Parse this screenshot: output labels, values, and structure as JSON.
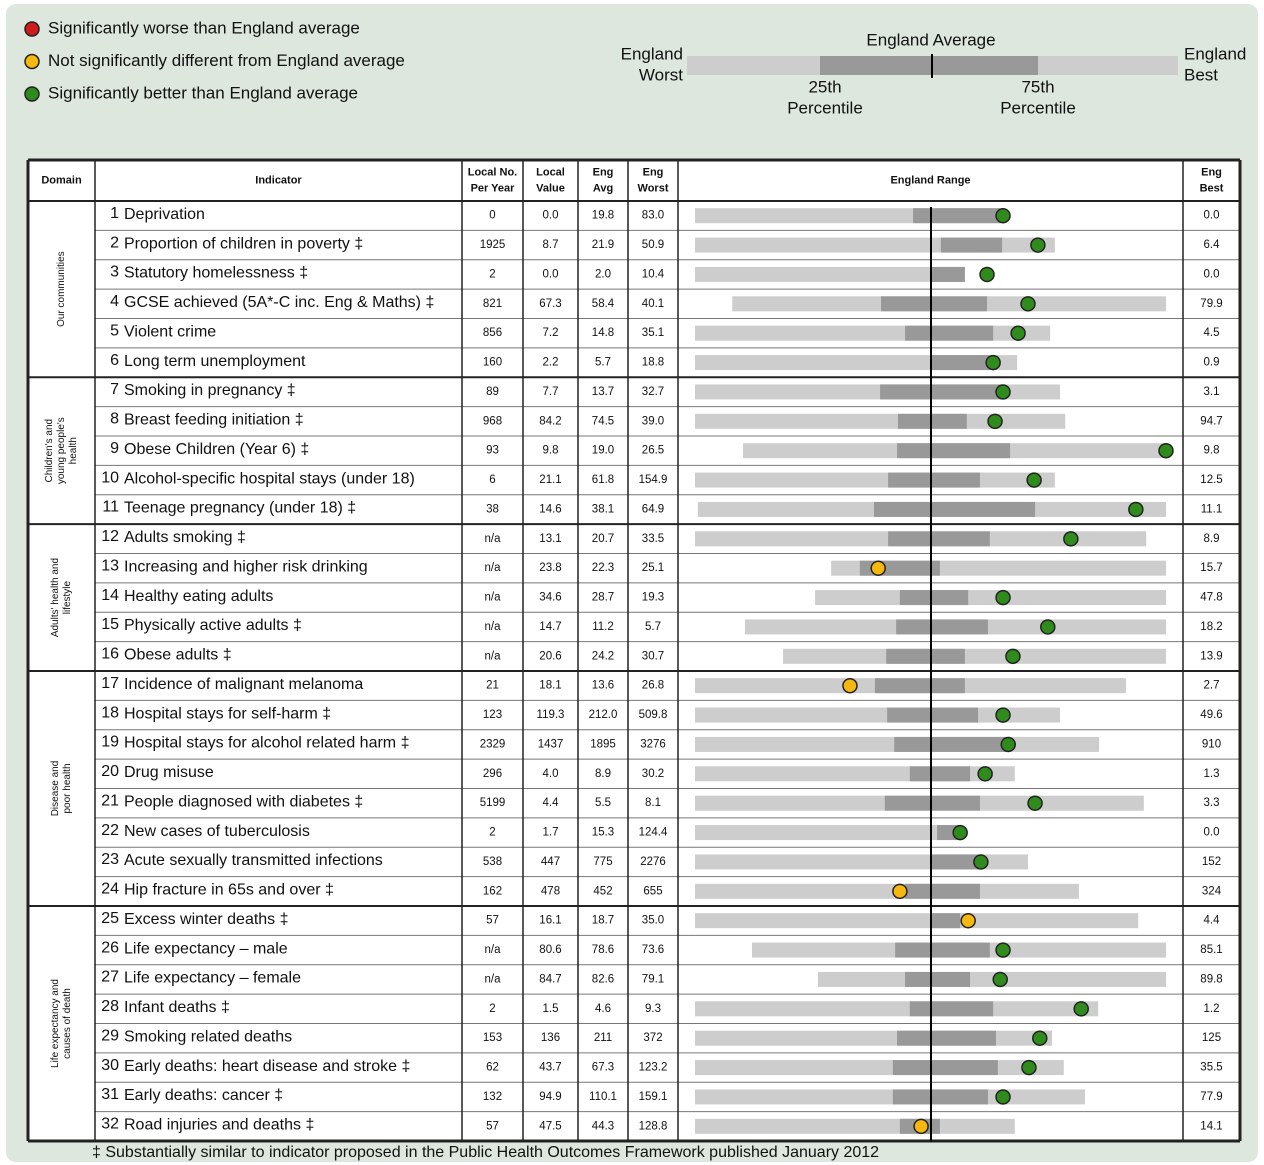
{
  "legend": [
    {
      "label": "Significantly worse than England average",
      "color": "#d21c1c"
    },
    {
      "label": "Not significantly different from England average",
      "color": "#f6b80f"
    },
    {
      "label": "Significantly better than England average",
      "color": "#2f8c1c"
    }
  ],
  "key": {
    "average": "England Average",
    "worst": [
      "England",
      "Worst"
    ],
    "best": [
      "England",
      "Best"
    ],
    "p25": [
      "25th",
      "Percentile"
    ],
    "p75": [
      "75th",
      "Percentile"
    ]
  },
  "table": {
    "headers": [
      [
        "Domain"
      ],
      [
        "Indicator"
      ],
      [
        "Local No.",
        "Per Year"
      ],
      [
        "Local",
        "Value"
      ],
      [
        "Eng",
        "Avg"
      ],
      [
        "Eng",
        "Worst"
      ],
      [
        "England Range"
      ],
      [
        "Eng",
        "Best"
      ]
    ],
    "domains": [
      {
        "name": [
          "Our communities"
        ],
        "rows": [
          [
            "1",
            "Deprivation",
            "0",
            "0.0",
            "19.8",
            "83.0",
            "0.0",
            [
              0,
              46.3,
              64.8,
              65.4,
              65.4
            ],
            "#2f8c1c"
          ],
          [
            "2",
            "Proportion of children in poverty ‡",
            "1925",
            "8.7",
            "21.9",
            "50.9",
            "6.4",
            [
              0,
              52.2,
              65.2,
              76.4,
              72.8
            ],
            "#2f8c1c"
          ],
          [
            "3",
            "Statutory homelessness ‡",
            "2",
            "0.0",
            "2.0",
            "10.4",
            "0.0",
            [
              0,
              49.9,
              57.3,
              57.3,
              62.0
            ],
            "#2f8c1c"
          ],
          [
            "4",
            "GCSE achieved (5A*-C inc. Eng & Maths) ‡",
            "821",
            "67.3",
            "58.4",
            "40.1",
            "79.9",
            [
              7.9,
              39.5,
              62.0,
              100,
              70.7
            ],
            "#2f8c1c"
          ],
          [
            "5",
            "Violent crime",
            "856",
            "7.2",
            "14.8",
            "35.1",
            "4.5",
            [
              0,
              44.6,
              63.3,
              75.4,
              68.6
            ],
            "#2f8c1c"
          ],
          [
            "6",
            "Long term unemployment",
            "160",
            "2.2",
            "5.7",
            "18.8",
            "0.9",
            [
              0,
              49.9,
              62.6,
              68.4,
              63.3
            ],
            "#2f8c1c"
          ]
        ]
      },
      {
        "name": [
          "Children's and",
          "young people's",
          "health"
        ],
        "rows": [
          [
            "7",
            "Smoking in pregnancy ‡",
            "89",
            "7.7",
            "13.7",
            "32.7",
            "3.1",
            [
              0,
              39.3,
              65.2,
              77.5,
              65.4
            ],
            "#2f8c1c"
          ],
          [
            "8",
            "Breast feeding initiation ‡",
            "968",
            "84.2",
            "74.5",
            "39.0",
            "94.7",
            [
              0,
              43.1,
              57.7,
              78.6,
              63.7
            ],
            "#2f8c1c"
          ],
          [
            "9",
            "Obese Children (Year 6) ‡",
            "93",
            "9.8",
            "19.0",
            "26.5",
            "9.8",
            [
              10.2,
              42.9,
              66.9,
              100,
              100
            ],
            "#2f8c1c"
          ],
          [
            "10",
            "Alcohol-specific hospital stays (under 18)",
            "6",
            "21.1",
            "61.8",
            "154.9",
            "12.5",
            [
              0,
              41.0,
              60.5,
              76.4,
              72.0
            ],
            "#2f8c1c"
          ],
          [
            "11",
            "Teenage pregnancy (under 18) ‡",
            "38",
            "14.6",
            "38.1",
            "64.9",
            "11.1",
            [
              0.6,
              38.0,
              72.2,
              100,
              93.6
            ],
            "#2f8c1c"
          ]
        ]
      },
      {
        "name": [
          "Adults' health and",
          "lifestyle"
        ],
        "rows": [
          [
            "12",
            "Adults smoking ‡",
            "n/a",
            "13.1",
            "20.7",
            "33.5",
            "8.9",
            [
              0,
              41.0,
              62.6,
              95.8,
              79.8
            ],
            "#2f8c1c"
          ],
          [
            "13",
            "Increasing and higher risk drinking",
            "n/a",
            "23.8",
            "22.3",
            "25.1",
            "15.7",
            [
              28.9,
              35.0,
              52.0,
              100,
              38.9
            ],
            "#f6b80f"
          ],
          [
            "14",
            "Healthy eating adults",
            "n/a",
            "34.6",
            "28.7",
            "19.3",
            "47.8",
            [
              25.5,
              43.5,
              58.0,
              100,
              65.4
            ],
            "#2f8c1c"
          ],
          [
            "15",
            "Physically active adults ‡",
            "n/a",
            "14.7",
            "11.2",
            "5.7",
            "18.2",
            [
              10.6,
              42.7,
              62.2,
              100,
              74.9
            ],
            "#2f8c1c"
          ],
          [
            "16",
            "Obese adults ‡",
            "n/a",
            "20.6",
            "24.2",
            "30.7",
            "13.9",
            [
              18.7,
              40.6,
              57.3,
              100,
              67.5
            ],
            "#2f8c1c"
          ]
        ]
      },
      {
        "name": [
          "Disease and",
          "poor health"
        ],
        "rows": [
          [
            "17",
            "Incidence of malignant melanoma",
            "21",
            "18.1",
            "13.6",
            "26.8",
            "2.7",
            [
              0,
              38.2,
              57.3,
              91.5,
              32.9
            ],
            "#f6b80f"
          ],
          [
            "18",
            "Hospital stays for self-harm ‡",
            "123",
            "119.3",
            "212.0",
            "509.8",
            "49.6",
            [
              0,
              40.8,
              60.1,
              77.5,
              65.4
            ],
            "#2f8c1c"
          ],
          [
            "19",
            "Hospital stays for alcohol related harm ‡",
            "2329",
            "1437",
            "1895",
            "3276",
            "910",
            [
              0,
              42.3,
              66.9,
              85.8,
              66.5
            ],
            "#2f8c1c"
          ],
          [
            "20",
            "Drug misuse",
            "296",
            "4.0",
            "8.9",
            "30.2",
            "1.3",
            [
              0,
              45.6,
              58.4,
              67.9,
              61.6
            ],
            "#2f8c1c"
          ],
          [
            "21",
            "People diagnosed with diabetes ‡",
            "5199",
            "4.4",
            "5.5",
            "8.1",
            "3.3",
            [
              0,
              40.3,
              60.5,
              95.3,
              72.2
            ],
            "#2f8c1c"
          ],
          [
            "22",
            "New cases of tuberculosis",
            "2",
            "1.7",
            "15.3",
            "124.4",
            "0.0",
            [
              0,
              51.4,
              56.3,
              56.3,
              56.3
            ],
            "#2f8c1c"
          ],
          [
            "23",
            "Acute sexually transmitted infections",
            "538",
            "447",
            "775",
            "2276",
            "152",
            [
              0,
              49.9,
              60.5,
              70.7,
              60.7
            ],
            "#2f8c1c"
          ],
          [
            "24",
            "Hip fracture in 65s and over ‡",
            "162",
            "478",
            "452",
            "655",
            "324",
            [
              0,
              44.6,
              60.5,
              81.5,
              43.5
            ],
            "#f6b80f"
          ]
        ]
      },
      {
        "name": [
          "Life expectancy and",
          "causes of death"
        ],
        "rows": [
          [
            "25",
            "Excess winter deaths ‡",
            "57",
            "16.1",
            "18.7",
            "35.0",
            "4.4",
            [
              0,
              50.3,
              56.3,
              94.1,
              58.0
            ],
            "#f6b80f"
          ],
          [
            "26",
            "Life expectancy – male",
            "n/a",
            "80.6",
            "78.6",
            "73.6",
            "85.1",
            [
              12.1,
              42.5,
              62.6,
              100,
              65.4
            ],
            "#2f8c1c"
          ],
          [
            "27",
            "Life expectancy – female",
            "n/a",
            "84.7",
            "82.6",
            "79.1",
            "89.8",
            [
              26.1,
              44.6,
              58.4,
              100,
              64.8
            ],
            "#2f8c1c"
          ],
          [
            "28",
            "Infant deaths ‡",
            "2",
            "1.5",
            "4.6",
            "9.3",
            "1.2",
            [
              0,
              45.6,
              63.3,
              85.6,
              82.0
            ],
            "#2f8c1c"
          ],
          [
            "29",
            "Smoking related deaths",
            "153",
            "136",
            "211",
            "372",
            "125",
            [
              0,
              42.9,
              63.9,
              75.8,
              73.2
            ],
            "#2f8c1c"
          ],
          [
            "30",
            "Early deaths: heart disease and stroke ‡",
            "62",
            "43.7",
            "67.3",
            "123.2",
            "35.5",
            [
              0,
              42.0,
              64.3,
              78.3,
              70.9
            ],
            "#2f8c1c"
          ],
          [
            "31",
            "Early deaths: cancer ‡",
            "132",
            "94.9",
            "110.1",
            "159.1",
            "77.9",
            [
              0,
              42.0,
              62.2,
              82.8,
              65.4
            ],
            "#2f8c1c"
          ],
          [
            "32",
            "Road injuries and deaths ‡",
            "57",
            "47.5",
            "44.3",
            "128.8",
            "14.1",
            [
              0,
              43.5,
              52.0,
              67.9,
              48.0
            ],
            "#f6b80f"
          ]
        ]
      }
    ]
  },
  "footnote": "‡ Substantially similar to indicator proposed in the Public Health Outcomes Framework published January 2012"
}
